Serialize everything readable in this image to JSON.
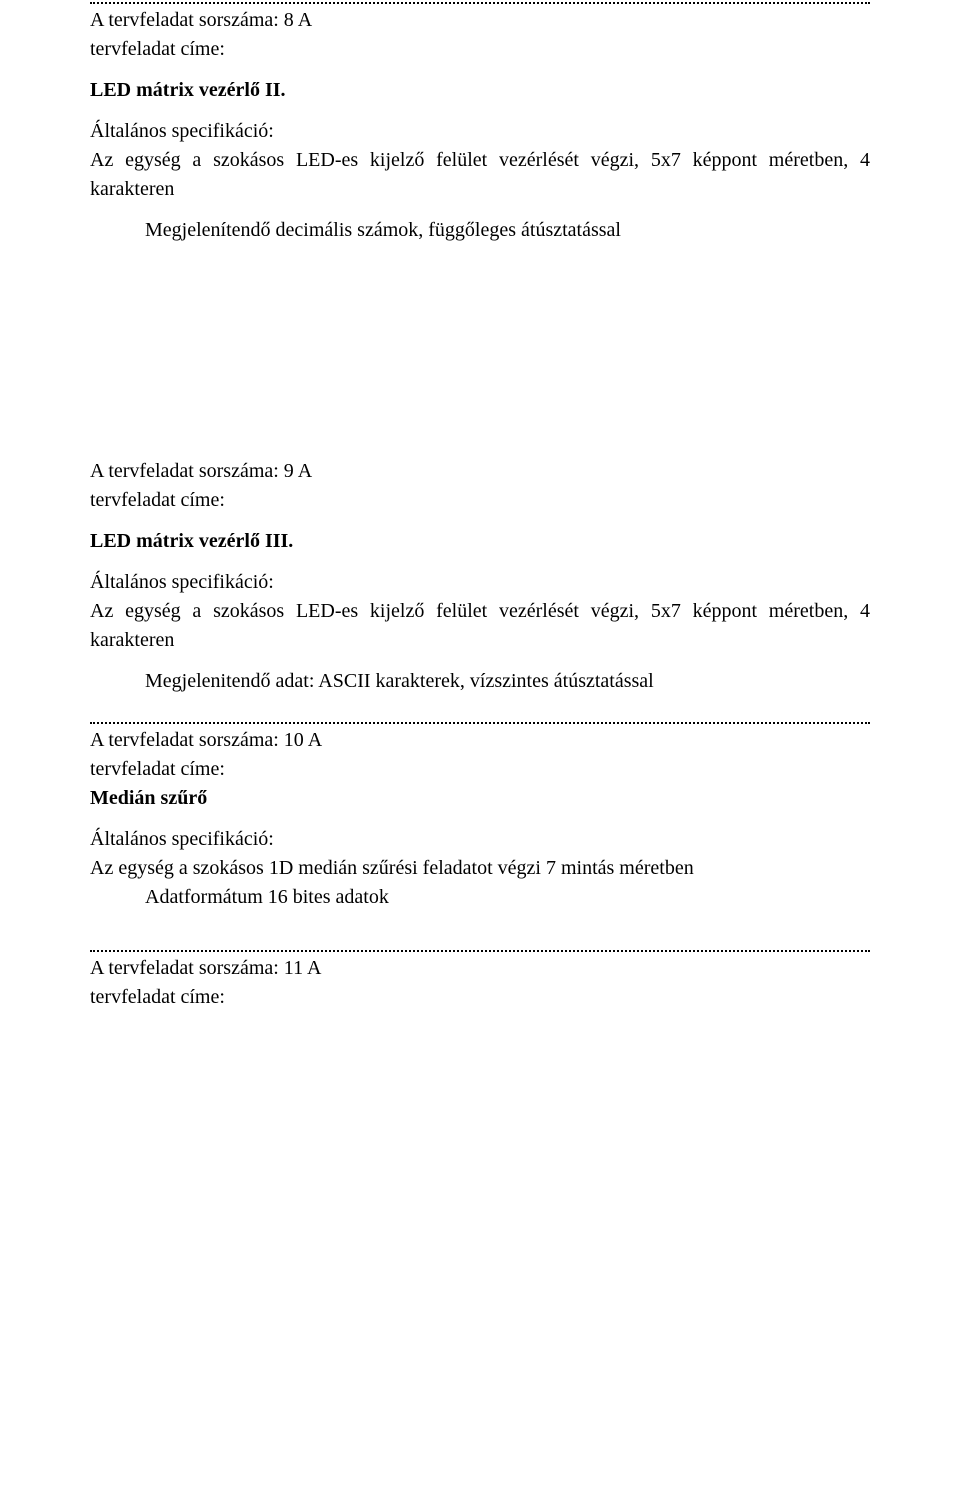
{
  "tasks": [
    {
      "number_line": "A tervfeladat sorszáma: 8 A",
      "title_label": "tervfeladat címe:",
      "title": "LED mátrix vezérlő II.",
      "spec_heading": "Általános specifikáció:",
      "spec_body": "Az egység a szokásos LED-es kijelző felület vezérlését végzi, 5x7 képpont méretben, 4 karakteren",
      "indent_line": "Megjelenítendő decimális számok, függőleges átúsztatással"
    },
    {
      "number_line": "A tervfeladat sorszáma: 9 A",
      "title_label": "tervfeladat címe:",
      "title": "LED mátrix vezérlő  III.",
      "spec_heading": "Általános specifikáció:",
      "spec_body": "Az egység a szokásos LED-es kijelző felület vezérlését végzi, 5x7 képpont méretben, 4 karakteren",
      "indent_line": "Megjelenitendő adat:  ASCII karakterek, vízszintes átúsztatással"
    },
    {
      "number_line": "A tervfeladat sorszáma: 10 A",
      "title_label": "tervfeladat címe:",
      "title": "Medián szűrő",
      "spec_heading": "Általános specifikáció:",
      "spec_body": "Az egység a szokásos 1D medián szűrési feladatot végzi 7 mintás méretben",
      "indent_line": "Adatformátum 16 bites adatok"
    },
    {
      "number_line": "A tervfeladat sorszáma: 11 A",
      "title_label": "tervfeladat címe:"
    }
  ]
}
